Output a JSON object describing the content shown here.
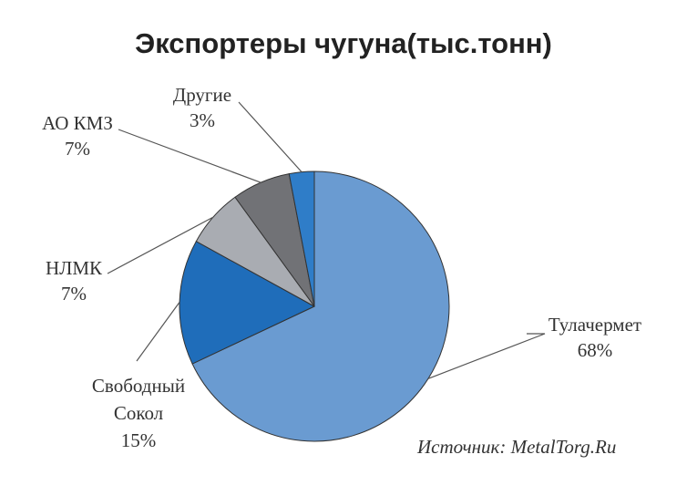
{
  "chart_data": {
    "type": "pie",
    "title": "Экспортеры чугуна(тыс.тонн)",
    "slices": [
      {
        "label": "Тулачермет",
        "value_label": "68%",
        "value": 68,
        "color": "#6a9bd1"
      },
      {
        "label": "Свободный Сокол",
        "label_line1": "Свободный",
        "label_line2": "Сокол",
        "value_label": "15%",
        "value": 15,
        "color": "#1f6dba"
      },
      {
        "label": "НЛМК",
        "value_label": "7%",
        "value": 7,
        "color": "#a9acb2"
      },
      {
        "label": "АО КМЗ",
        "value_label": "7%",
        "value": 7,
        "color": "#717276"
      },
      {
        "label": "Другие",
        "value_label": "3%",
        "value": 3,
        "color": "#2f7dc8"
      }
    ],
    "start": "12 o'clock",
    "direction": "clockwise",
    "legend": "none (labels with leader lines)",
    "source": "Источник: MetalTorg.Ru"
  }
}
